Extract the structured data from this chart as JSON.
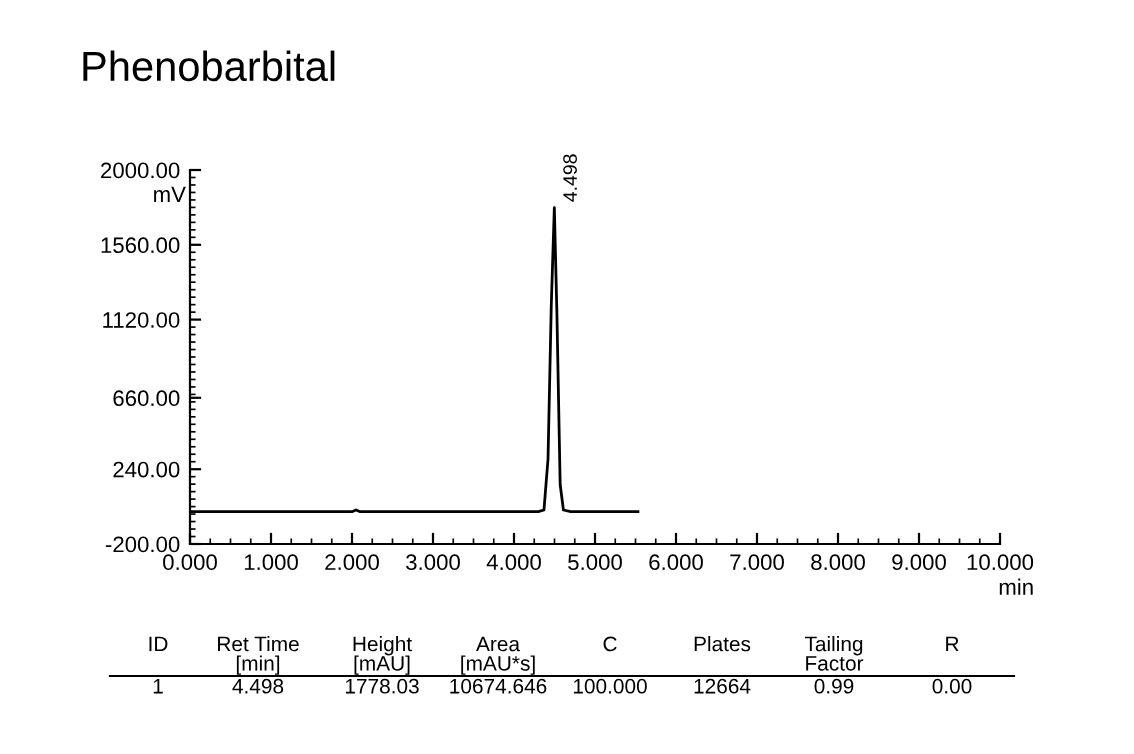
{
  "chart_data": {
    "type": "line",
    "title": "Phenobarbital",
    "xlabel": "min",
    "ylabel": "mV",
    "x": [
      0,
      1.0,
      2.0,
      2.05,
      2.1,
      3.0,
      4.0,
      4.3,
      4.37,
      4.42,
      4.46,
      4.498,
      4.53,
      4.57,
      4.61,
      4.7,
      5.0,
      5.53
    ],
    "series": [
      {
        "color": "#000000",
        "values": [
          -10,
          -10,
          -10,
          0,
          -10,
          -10,
          -10,
          -10,
          0,
          300,
          1200,
          1778,
          1150,
          150,
          0,
          -10,
          -10,
          -10
        ]
      }
    ],
    "xlim": [
      0,
      10
    ],
    "ylim": [
      -200,
      2000
    ],
    "xticks": [
      {
        "value": 0,
        "label": "0.000"
      },
      {
        "value": 1,
        "label": "1.000"
      },
      {
        "value": 2,
        "label": "2.000"
      },
      {
        "value": 3,
        "label": "3.000"
      },
      {
        "value": 4,
        "label": "4.000"
      },
      {
        "value": 5,
        "label": "5.000"
      },
      {
        "value": 6,
        "label": "6.000"
      },
      {
        "value": 7,
        "label": "7.000"
      },
      {
        "value": 8,
        "label": "8.000"
      },
      {
        "value": 9,
        "label": "9.000"
      },
      {
        "value": 10,
        "label": "10.000"
      }
    ],
    "yticks": [
      {
        "value": -200,
        "label": "-200.00"
      },
      {
        "value": 240,
        "label": "240.00"
      },
      {
        "value": 660,
        "label": "660.00"
      },
      {
        "value": 1120,
        "label": "1120.00"
      },
      {
        "value": 1560,
        "label": "1560.00"
      },
      {
        "value": 2000,
        "label": "2000.00"
      }
    ],
    "marker": "none",
    "line_style": "solid",
    "annotations": [
      {
        "text": "4.498",
        "x": 4.498,
        "y": 1778
      },
      "ID",
      "Ret Time\n[min]",
      "Height\n[mAU]",
      "Area\n[mAU*s]",
      "C",
      "Plates",
      "Tailing\nFactor",
      "R",
      "1",
      "4.498",
      "1778.03",
      "10674.646",
      "100.000",
      "12664",
      "0.99",
      "0.00"
    ]
  }
}
